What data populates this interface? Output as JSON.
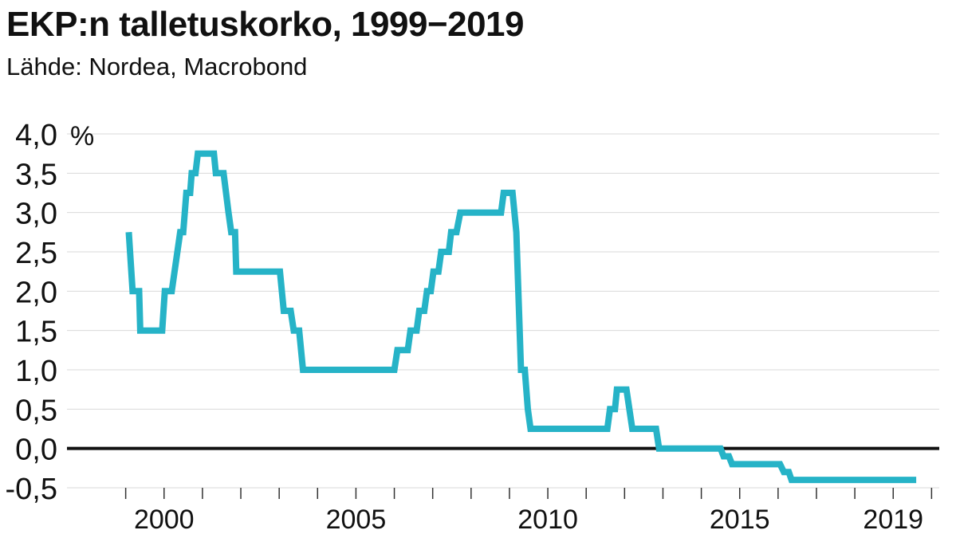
{
  "title": "EKP:n talletuskorko, 1999−2019",
  "subtitle": "Lähde: Nordea, Macrobond",
  "chart_data": {
    "type": "line",
    "unit": "%",
    "ylim": [
      -0.5,
      4.0
    ],
    "y_ticks": [
      "-0,5",
      "0,0",
      "0,5",
      "1,0",
      "1,5",
      "2,0",
      "2,5",
      "3,0",
      "3,5",
      "4,0"
    ],
    "x_ticks": [
      "2000",
      "2005",
      "2010",
      "2015",
      "2019"
    ],
    "xlim": [
      1999.0,
      2020.2
    ],
    "grid": true,
    "series": [
      {
        "name": "",
        "color": "#26b3c7",
        "points": [
          [
            1999.08,
            2.75
          ],
          [
            1999.18,
            2.0
          ],
          [
            1999.35,
            2.0
          ],
          [
            1999.38,
            1.5
          ],
          [
            1999.95,
            1.5
          ],
          [
            2000.02,
            2.0
          ],
          [
            2000.2,
            2.0
          ],
          [
            2000.42,
            2.75
          ],
          [
            2000.5,
            2.75
          ],
          [
            2000.58,
            3.25
          ],
          [
            2000.68,
            3.25
          ],
          [
            2000.72,
            3.5
          ],
          [
            2000.82,
            3.5
          ],
          [
            2000.88,
            3.75
          ],
          [
            2001.3,
            3.75
          ],
          [
            2001.35,
            3.5
          ],
          [
            2001.55,
            3.5
          ],
          [
            2001.68,
            3.0
          ],
          [
            2001.75,
            2.75
          ],
          [
            2001.85,
            2.75
          ],
          [
            2001.88,
            2.25
          ],
          [
            2003.02,
            2.25
          ],
          [
            2003.12,
            1.75
          ],
          [
            2003.3,
            1.75
          ],
          [
            2003.38,
            1.5
          ],
          [
            2003.52,
            1.5
          ],
          [
            2003.62,
            1.0
          ],
          [
            2006.0,
            1.0
          ],
          [
            2006.08,
            1.25
          ],
          [
            2006.35,
            1.25
          ],
          [
            2006.42,
            1.5
          ],
          [
            2006.58,
            1.5
          ],
          [
            2006.65,
            1.75
          ],
          [
            2006.78,
            1.75
          ],
          [
            2006.85,
            2.0
          ],
          [
            2006.95,
            2.0
          ],
          [
            2007.02,
            2.25
          ],
          [
            2007.15,
            2.25
          ],
          [
            2007.22,
            2.5
          ],
          [
            2007.42,
            2.5
          ],
          [
            2007.48,
            2.75
          ],
          [
            2007.62,
            2.75
          ],
          [
            2007.72,
            3.0
          ],
          [
            2008.78,
            3.0
          ],
          [
            2008.85,
            3.25
          ],
          [
            2009.08,
            3.25
          ],
          [
            2009.18,
            2.75
          ],
          [
            2009.3,
            1.0
          ],
          [
            2009.4,
            1.0
          ],
          [
            2009.48,
            0.5
          ],
          [
            2009.55,
            0.25
          ],
          [
            2011.55,
            0.25
          ],
          [
            2011.62,
            0.5
          ],
          [
            2011.75,
            0.5
          ],
          [
            2011.8,
            0.75
          ],
          [
            2012.05,
            0.75
          ],
          [
            2012.2,
            0.25
          ],
          [
            2012.82,
            0.25
          ],
          [
            2012.9,
            0.0
          ],
          [
            2014.5,
            0.0
          ],
          [
            2014.58,
            -0.1
          ],
          [
            2014.72,
            -0.1
          ],
          [
            2014.8,
            -0.2
          ],
          [
            2016.05,
            -0.2
          ],
          [
            2016.15,
            -0.3
          ],
          [
            2016.28,
            -0.3
          ],
          [
            2016.35,
            -0.4
          ],
          [
            2019.6,
            -0.4
          ]
        ]
      }
    ]
  }
}
